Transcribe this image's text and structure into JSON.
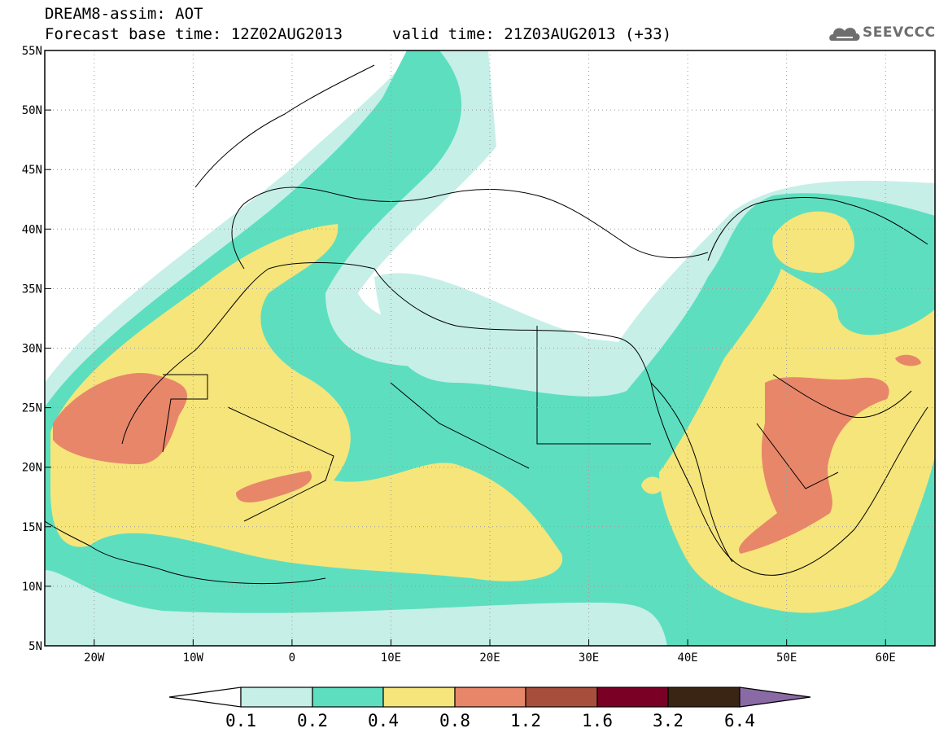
{
  "header": {
    "title": "DREAM8-assim: AOT",
    "forecast_base": "Forecast base time: 12Z02AUG2013",
    "valid_time": "valid time: 21Z03AUG2013 (+33)",
    "logo_text": "SEEVCCC"
  },
  "map": {
    "lon_range": [
      -25,
      65
    ],
    "lat_range": [
      5,
      55
    ],
    "lon_ticks": [
      "20W",
      "10W",
      "0",
      "10E",
      "20E",
      "30E",
      "40E",
      "50E",
      "60E"
    ],
    "lat_ticks": [
      "55N",
      "50N",
      "45N",
      "40N",
      "35N",
      "30N",
      "25N",
      "20N",
      "15N",
      "10N",
      "5N"
    ],
    "grid": "dotted"
  },
  "colorbar": {
    "labels": [
      "0.1",
      "0.2",
      "0.4",
      "0.8",
      "1.2",
      "1.6",
      "3.2",
      "6.4"
    ],
    "colors": [
      "#ffffff",
      "#c6efe8",
      "#5ddfbf",
      "#f6e57a",
      "#e8866a",
      "#a74e3d",
      "#7a0025",
      "#3a2414",
      "#8a6aa4"
    ]
  },
  "legend_colors": {
    "level_01": "#c6efe8",
    "level_02": "#5ddfbf",
    "level_04": "#f6e57a",
    "level_08": "#e8866a"
  }
}
